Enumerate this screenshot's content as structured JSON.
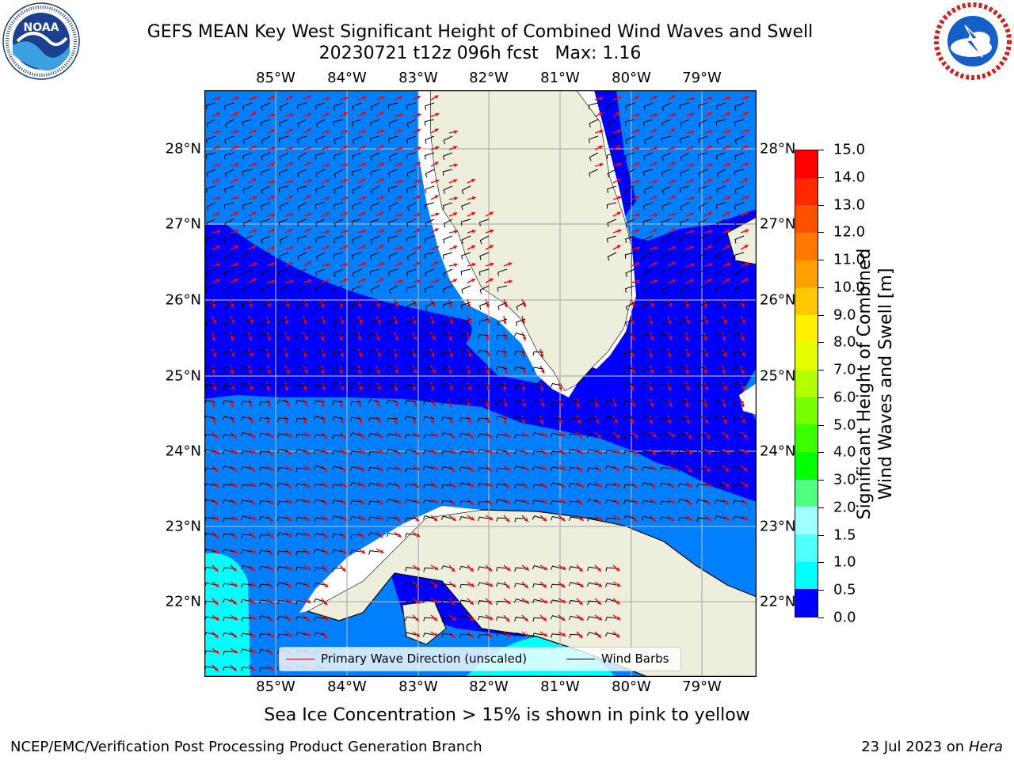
{
  "header": {
    "title_line1": "GEFS MEAN Key West Significant Height of Combined Wind Waves and Swell",
    "title_line2": "20230721 t12z 096h fcst   Max: 1.16"
  },
  "logos": {
    "left": {
      "name": "NOAA",
      "ring_text": "NATIONAL OCEANIC AND ATMOSPHERIC ADMINISTRATION · U.S. DEPARTMENT OF COMMERCE"
    },
    "right": {
      "name": "NATIONAL WEATHER SERVICE"
    }
  },
  "map": {
    "x_ticks": [
      "85°W",
      "84°W",
      "83°W",
      "82°W",
      "81°W",
      "80°W",
      "79°W"
    ],
    "y_ticks": [
      "28°N",
      "27°N",
      "26°N",
      "25°N",
      "24°N",
      "23°N",
      "22°N"
    ],
    "colors": {
      "ocean_low": "#0000ff",
      "ocean_mid": "#0080ff",
      "ocean_high": "#00ffff",
      "land": "#eeeedc",
      "gridline": "#b0b0b0",
      "wave_arrow": "#ff0000",
      "wind_barb": "#000000"
    }
  },
  "legend": {
    "wave_label": "Primary Wave Direction (unscaled)",
    "wind_label": "Wind Barbs",
    "wave_color": "#ff0000",
    "wind_color": "#000000"
  },
  "colorbar": {
    "label_line1": "Significant Height of Combined",
    "label_line2": "Wind Waves and Swell [m]",
    "ticks": [
      "15.0",
      "14.0",
      "13.0",
      "12.0",
      "11.0",
      "10.0",
      "9.0",
      "8.0",
      "7.0",
      "6.0",
      "5.0",
      "4.0",
      "3.0",
      "2.0",
      "1.5",
      "1.0",
      "0.5",
      "0.0"
    ],
    "band_colors": [
      "#ff0000",
      "#ff2800",
      "#ff5000",
      "#ff7800",
      "#ffa000",
      "#ffc800",
      "#fff000",
      "#e6ff00",
      "#b4ff00",
      "#78ff00",
      "#3cff00",
      "#00ff00",
      "#50ff80",
      "#a0ffff",
      "#50ffff",
      "#00ffff",
      "#0080ff",
      "#0000ff"
    ]
  },
  "footer": {
    "note": "Sea Ice Concentration > 15% is shown in pink to yellow",
    "left": "NCEP/EMC/Verification Post Processing Product Generation Branch",
    "right_prefix": "23 Jul 2023 on ",
    "right_host": "Hera"
  }
}
